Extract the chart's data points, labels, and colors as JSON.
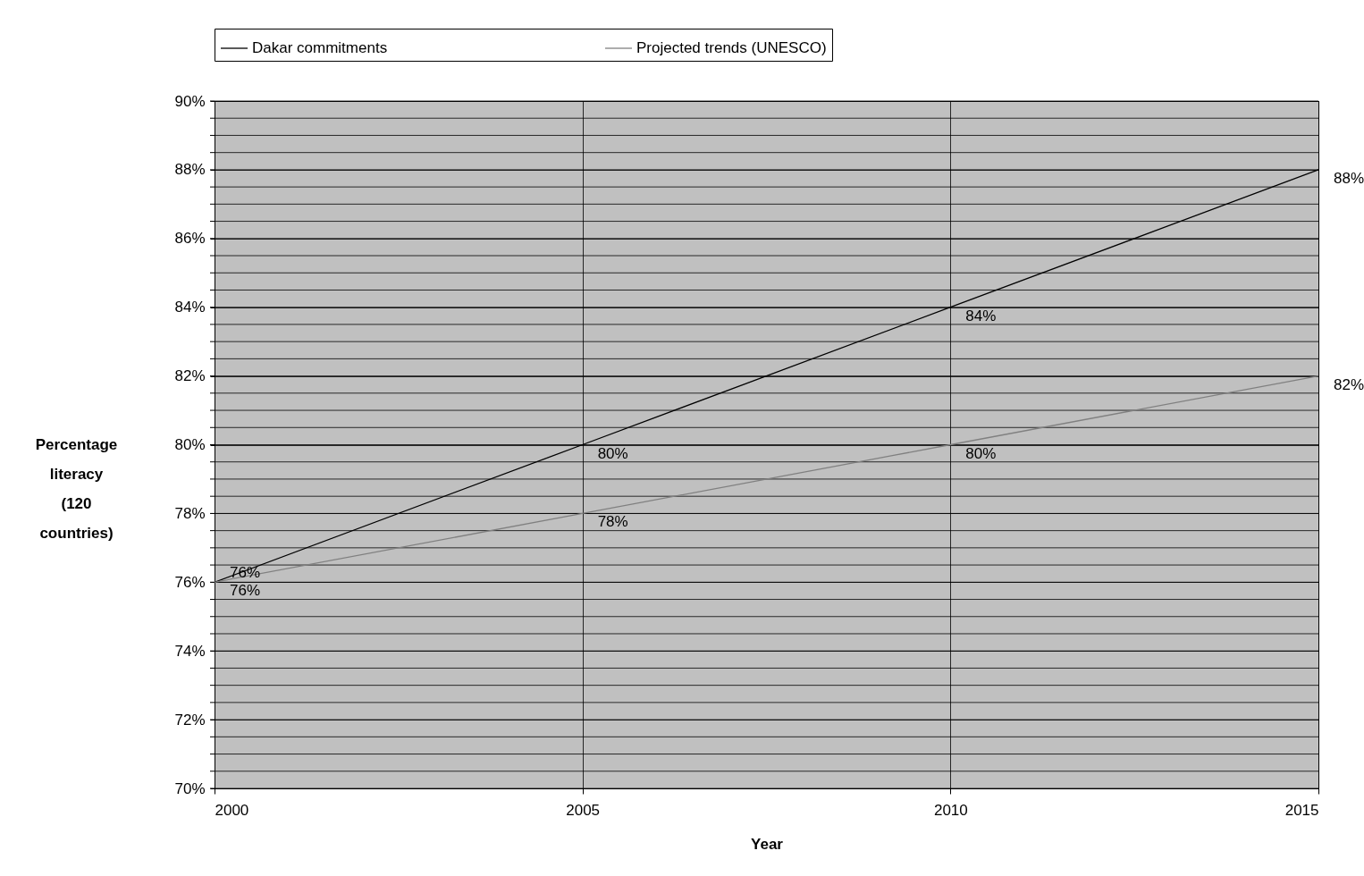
{
  "chart_data": {
    "type": "line",
    "xlabel": "Year",
    "ylabel": "Percentage literacy (120 countries)",
    "x": [
      2000,
      2005,
      2010,
      2015
    ],
    "xlim": [
      2000,
      2015
    ],
    "xticks": [
      2000,
      2005,
      2010,
      2015
    ],
    "ylim": [
      70,
      90
    ],
    "yticks": [
      {
        "value": 70,
        "label": "70%"
      },
      {
        "value": 70.5,
        "label": null
      },
      {
        "value": 71,
        "label": null
      },
      {
        "value": 71.5,
        "label": null
      },
      {
        "value": 72,
        "label": "72%"
      },
      {
        "value": 72.5,
        "label": null
      },
      {
        "value": 73,
        "label": null
      },
      {
        "value": 73.5,
        "label": null
      },
      {
        "value": 74,
        "label": "74%"
      },
      {
        "value": 74.5,
        "label": null
      },
      {
        "value": 75,
        "label": null
      },
      {
        "value": 75.5,
        "label": null
      },
      {
        "value": 76,
        "label": "76%"
      },
      {
        "value": 76.5,
        "label": null
      },
      {
        "value": 77,
        "label": null
      },
      {
        "value": 77.5,
        "label": null
      },
      {
        "value": 78,
        "label": "78%"
      },
      {
        "value": 78.5,
        "label": null
      },
      {
        "value": 79,
        "label": null
      },
      {
        "value": 79.5,
        "label": null
      },
      {
        "value": 80,
        "label": "80%"
      },
      {
        "value": 80.5,
        "label": null
      },
      {
        "value": 81,
        "label": null
      },
      {
        "value": 81.5,
        "label": null
      },
      {
        "value": 82,
        "label": "82%"
      },
      {
        "value": 82.5,
        "label": null
      },
      {
        "value": 83,
        "label": null
      },
      {
        "value": 83.5,
        "label": null
      },
      {
        "value": 84,
        "label": "84%"
      },
      {
        "value": 84.5,
        "label": null
      },
      {
        "value": 85,
        "label": null
      },
      {
        "value": 85.5,
        "label": null
      },
      {
        "value": 86,
        "label": "86%"
      },
      {
        "value": 86.5,
        "label": null
      },
      {
        "value": 87,
        "label": null
      },
      {
        "value": 87.5,
        "label": null
      },
      {
        "value": 88,
        "label": "88%"
      },
      {
        "value": 88.5,
        "label": null
      },
      {
        "value": 89,
        "label": null
      },
      {
        "value": 89.5,
        "label": null
      },
      {
        "value": 90,
        "label": "90%"
      }
    ],
    "series": [
      {
        "name": "Dakar commitments",
        "color": "#000000",
        "values": [
          76,
          80,
          84,
          88
        ],
        "value_labels": [
          "76%",
          "80%",
          "84%",
          "88%"
        ]
      },
      {
        "name": "Projected trends (UNESCO)",
        "color": "#808080",
        "values": [
          76,
          78,
          80,
          82
        ],
        "value_labels": [
          "76%",
          "78%",
          "80%",
          "82%"
        ]
      }
    ],
    "grid": true,
    "legend": "top",
    "marker": "none",
    "line_style": "solid"
  }
}
